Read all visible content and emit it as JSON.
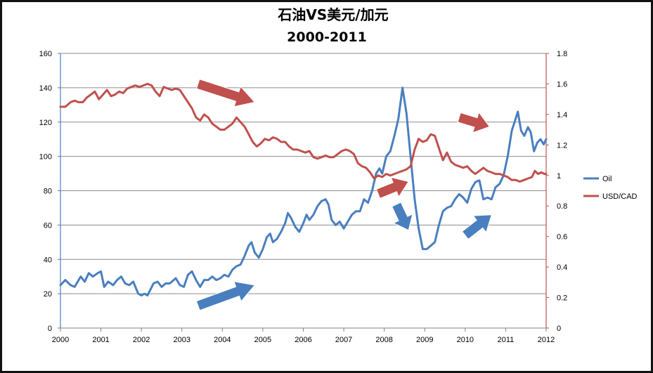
{
  "chart_data": {
    "type": "line",
    "title": "石油VS美元/加元",
    "subtitle": "2000-2011",
    "x_ticks": [
      "2000",
      "2001",
      "2002",
      "2003",
      "2004",
      "2005",
      "2006",
      "2007",
      "2008",
      "2009",
      "2010",
      "2011",
      "2012"
    ],
    "xlim": [
      2000,
      2012
    ],
    "y_left": {
      "ylim": [
        0,
        160
      ],
      "ticks": [
        "0",
        "20",
        "40",
        "60",
        "80",
        "100",
        "120",
        "140",
        "160"
      ]
    },
    "y_right": {
      "ylim": [
        0,
        1.8
      ],
      "ticks": [
        "0",
        "0.2",
        "0.4",
        "0.6",
        "0.8",
        "1",
        "1.2",
        "1.4",
        "1.6",
        "1.8"
      ]
    },
    "grid": true,
    "legend_position": "right",
    "series": [
      {
        "name": "Oil",
        "axis": "left",
        "color": "#4a7fbf",
        "points": [
          [
            2000.0,
            25
          ],
          [
            2000.12,
            28
          ],
          [
            2000.25,
            25
          ],
          [
            2000.35,
            24
          ],
          [
            2000.5,
            30
          ],
          [
            2000.6,
            27
          ],
          [
            2000.7,
            32
          ],
          [
            2000.8,
            30
          ],
          [
            2000.92,
            32
          ],
          [
            2001.0,
            33
          ],
          [
            2001.08,
            24
          ],
          [
            2001.18,
            27
          ],
          [
            2001.3,
            25
          ],
          [
            2001.4,
            28
          ],
          [
            2001.5,
            30
          ],
          [
            2001.6,
            26
          ],
          [
            2001.7,
            25
          ],
          [
            2001.8,
            27
          ],
          [
            2001.92,
            20
          ],
          [
            2002.0,
            19
          ],
          [
            2002.08,
            20
          ],
          [
            2002.15,
            19
          ],
          [
            2002.3,
            26
          ],
          [
            2002.4,
            27
          ],
          [
            2002.5,
            24
          ],
          [
            2002.6,
            26
          ],
          [
            2002.7,
            26
          ],
          [
            2002.85,
            29
          ],
          [
            2002.95,
            25
          ],
          [
            2003.05,
            24
          ],
          [
            2003.15,
            31
          ],
          [
            2003.25,
            33
          ],
          [
            2003.35,
            28
          ],
          [
            2003.45,
            24
          ],
          [
            2003.55,
            28
          ],
          [
            2003.65,
            28
          ],
          [
            2003.75,
            30
          ],
          [
            2003.85,
            28
          ],
          [
            2003.95,
            29
          ],
          [
            2004.05,
            31
          ],
          [
            2004.15,
            30
          ],
          [
            2004.25,
            34
          ],
          [
            2004.35,
            36
          ],
          [
            2004.45,
            37
          ],
          [
            2004.55,
            42
          ],
          [
            2004.65,
            48
          ],
          [
            2004.72,
            50
          ],
          [
            2004.8,
            44
          ],
          [
            2004.9,
            41
          ],
          [
            2005.0,
            46
          ],
          [
            2005.1,
            53
          ],
          [
            2005.18,
            55
          ],
          [
            2005.25,
            50
          ],
          [
            2005.35,
            52
          ],
          [
            2005.45,
            56
          ],
          [
            2005.55,
            61
          ],
          [
            2005.62,
            67
          ],
          [
            2005.7,
            64
          ],
          [
            2005.8,
            59
          ],
          [
            2005.9,
            56
          ],
          [
            2006.0,
            61
          ],
          [
            2006.08,
            66
          ],
          [
            2006.15,
            63
          ],
          [
            2006.25,
            66
          ],
          [
            2006.35,
            71
          ],
          [
            2006.45,
            74
          ],
          [
            2006.55,
            75
          ],
          [
            2006.62,
            72
          ],
          [
            2006.7,
            63
          ],
          [
            2006.8,
            60
          ],
          [
            2006.9,
            62
          ],
          [
            2007.0,
            58
          ],
          [
            2007.1,
            62
          ],
          [
            2007.2,
            66
          ],
          [
            2007.3,
            68
          ],
          [
            2007.4,
            68
          ],
          [
            2007.5,
            75
          ],
          [
            2007.6,
            73
          ],
          [
            2007.7,
            80
          ],
          [
            2007.8,
            90
          ],
          [
            2007.88,
            93
          ],
          [
            2007.95,
            90
          ],
          [
            2008.05,
            100
          ],
          [
            2008.15,
            103
          ],
          [
            2008.25,
            112
          ],
          [
            2008.35,
            122
          ],
          [
            2008.45,
            140
          ],
          [
            2008.55,
            125
          ],
          [
            2008.65,
            100
          ],
          [
            2008.75,
            75
          ],
          [
            2008.85,
            58
          ],
          [
            2008.95,
            46
          ],
          [
            2009.05,
            46
          ],
          [
            2009.15,
            48
          ],
          [
            2009.25,
            50
          ],
          [
            2009.35,
            60
          ],
          [
            2009.45,
            68
          ],
          [
            2009.55,
            70
          ],
          [
            2009.65,
            71
          ],
          [
            2009.75,
            75
          ],
          [
            2009.85,
            78
          ],
          [
            2009.95,
            76
          ],
          [
            2010.05,
            73
          ],
          [
            2010.15,
            81
          ],
          [
            2010.25,
            85
          ],
          [
            2010.35,
            86
          ],
          [
            2010.45,
            75
          ],
          [
            2010.55,
            76
          ],
          [
            2010.65,
            75
          ],
          [
            2010.75,
            82
          ],
          [
            2010.85,
            84
          ],
          [
            2010.95,
            89
          ],
          [
            2011.05,
            100
          ],
          [
            2011.15,
            115
          ],
          [
            2011.22,
            120
          ],
          [
            2011.3,
            126
          ],
          [
            2011.38,
            115
          ],
          [
            2011.46,
            112
          ],
          [
            2011.55,
            117
          ],
          [
            2011.62,
            114
          ],
          [
            2011.7,
            103
          ],
          [
            2011.78,
            108
          ],
          [
            2011.86,
            110
          ],
          [
            2011.94,
            107
          ],
          [
            2012.0,
            110
          ]
        ]
      },
      {
        "name": "USD/CAD",
        "axis": "right",
        "color": "#c0504d",
        "points": [
          [
            2000.0,
            1.45
          ],
          [
            2000.12,
            1.45
          ],
          [
            2000.25,
            1.48
          ],
          [
            2000.35,
            1.49
          ],
          [
            2000.45,
            1.48
          ],
          [
            2000.55,
            1.48
          ],
          [
            2000.65,
            1.51
          ],
          [
            2000.75,
            1.53
          ],
          [
            2000.85,
            1.55
          ],
          [
            2000.95,
            1.5
          ],
          [
            2001.05,
            1.53
          ],
          [
            2001.15,
            1.56
          ],
          [
            2001.25,
            1.52
          ],
          [
            2001.35,
            1.53
          ],
          [
            2001.45,
            1.55
          ],
          [
            2001.55,
            1.54
          ],
          [
            2001.65,
            1.57
          ],
          [
            2001.75,
            1.58
          ],
          [
            2001.85,
            1.59
          ],
          [
            2001.95,
            1.58
          ],
          [
            2002.05,
            1.59
          ],
          [
            2002.15,
            1.6
          ],
          [
            2002.25,
            1.59
          ],
          [
            2002.35,
            1.55
          ],
          [
            2002.45,
            1.52
          ],
          [
            2002.55,
            1.58
          ],
          [
            2002.65,
            1.57
          ],
          [
            2002.75,
            1.56
          ],
          [
            2002.85,
            1.57
          ],
          [
            2002.95,
            1.56
          ],
          [
            2003.05,
            1.52
          ],
          [
            2003.15,
            1.48
          ],
          [
            2003.25,
            1.44
          ],
          [
            2003.35,
            1.38
          ],
          [
            2003.45,
            1.36
          ],
          [
            2003.55,
            1.4
          ],
          [
            2003.65,
            1.38
          ],
          [
            2003.75,
            1.34
          ],
          [
            2003.85,
            1.32
          ],
          [
            2003.95,
            1.3
          ],
          [
            2004.05,
            1.3
          ],
          [
            2004.15,
            1.32
          ],
          [
            2004.25,
            1.34
          ],
          [
            2004.35,
            1.38
          ],
          [
            2004.45,
            1.35
          ],
          [
            2004.55,
            1.32
          ],
          [
            2004.65,
            1.27
          ],
          [
            2004.75,
            1.22
          ],
          [
            2004.85,
            1.19
          ],
          [
            2004.95,
            1.21
          ],
          [
            2005.05,
            1.24
          ],
          [
            2005.15,
            1.23
          ],
          [
            2005.25,
            1.25
          ],
          [
            2005.35,
            1.24
          ],
          [
            2005.45,
            1.22
          ],
          [
            2005.55,
            1.22
          ],
          [
            2005.65,
            1.19
          ],
          [
            2005.75,
            1.17
          ],
          [
            2005.85,
            1.17
          ],
          [
            2005.95,
            1.16
          ],
          [
            2006.05,
            1.15
          ],
          [
            2006.15,
            1.16
          ],
          [
            2006.25,
            1.12
          ],
          [
            2006.35,
            1.11
          ],
          [
            2006.45,
            1.12
          ],
          [
            2006.55,
            1.13
          ],
          [
            2006.65,
            1.12
          ],
          [
            2006.75,
            1.12
          ],
          [
            2006.85,
            1.14
          ],
          [
            2006.95,
            1.16
          ],
          [
            2007.05,
            1.17
          ],
          [
            2007.15,
            1.16
          ],
          [
            2007.25,
            1.14
          ],
          [
            2007.35,
            1.08
          ],
          [
            2007.45,
            1.06
          ],
          [
            2007.55,
            1.05
          ],
          [
            2007.65,
            1.02
          ],
          [
            2007.75,
            0.98
          ],
          [
            2007.85,
            1.0
          ],
          [
            2007.95,
            0.99
          ],
          [
            2008.05,
            1.01
          ],
          [
            2008.15,
            1.0
          ],
          [
            2008.25,
            1.01
          ],
          [
            2008.35,
            1.02
          ],
          [
            2008.45,
            1.03
          ],
          [
            2008.55,
            1.04
          ],
          [
            2008.65,
            1.06
          ],
          [
            2008.75,
            1.17
          ],
          [
            2008.85,
            1.24
          ],
          [
            2008.95,
            1.22
          ],
          [
            2009.05,
            1.23
          ],
          [
            2009.15,
            1.27
          ],
          [
            2009.25,
            1.26
          ],
          [
            2009.35,
            1.18
          ],
          [
            2009.45,
            1.1
          ],
          [
            2009.55,
            1.15
          ],
          [
            2009.65,
            1.09
          ],
          [
            2009.75,
            1.07
          ],
          [
            2009.85,
            1.06
          ],
          [
            2009.95,
            1.05
          ],
          [
            2010.05,
            1.06
          ],
          [
            2010.15,
            1.03
          ],
          [
            2010.25,
            1.01
          ],
          [
            2010.35,
            1.03
          ],
          [
            2010.45,
            1.05
          ],
          [
            2010.55,
            1.03
          ],
          [
            2010.65,
            1.02
          ],
          [
            2010.75,
            1.01
          ],
          [
            2010.85,
            1.01
          ],
          [
            2010.95,
            1.0
          ],
          [
            2011.05,
            0.99
          ],
          [
            2011.15,
            0.97
          ],
          [
            2011.25,
            0.97
          ],
          [
            2011.35,
            0.96
          ],
          [
            2011.45,
            0.97
          ],
          [
            2011.55,
            0.98
          ],
          [
            2011.65,
            0.99
          ],
          [
            2011.72,
            1.03
          ],
          [
            2011.8,
            1.01
          ],
          [
            2011.88,
            1.02
          ],
          [
            2011.96,
            1.01
          ],
          [
            2012.0,
            1.01
          ]
        ]
      }
    ],
    "annotations": [
      {
        "type": "arrow",
        "color": "#c0504d",
        "from": [
          2003.4,
          1.6
        ],
        "to": [
          2004.8,
          1.48
        ]
      },
      {
        "type": "arrow",
        "color": "#4a7fbf",
        "from": [
          2003.4,
          13
        ],
        "to": [
          2004.8,
          25
        ]
      },
      {
        "type": "arrow",
        "color": "#c0504d",
        "from": [
          2007.85,
          0.88
        ],
        "to": [
          2008.6,
          0.96
        ]
      },
      {
        "type": "arrow",
        "color": "#4a7fbf",
        "from": [
          2008.3,
          72
        ],
        "to": [
          2008.6,
          57
        ]
      },
      {
        "type": "arrow",
        "color": "#c0504d",
        "from": [
          2009.85,
          1.38
        ],
        "to": [
          2010.6,
          1.32
        ]
      },
      {
        "type": "arrow",
        "color": "#4a7fbf",
        "from": [
          2010.0,
          54
        ],
        "to": [
          2010.65,
          66
        ]
      }
    ]
  }
}
